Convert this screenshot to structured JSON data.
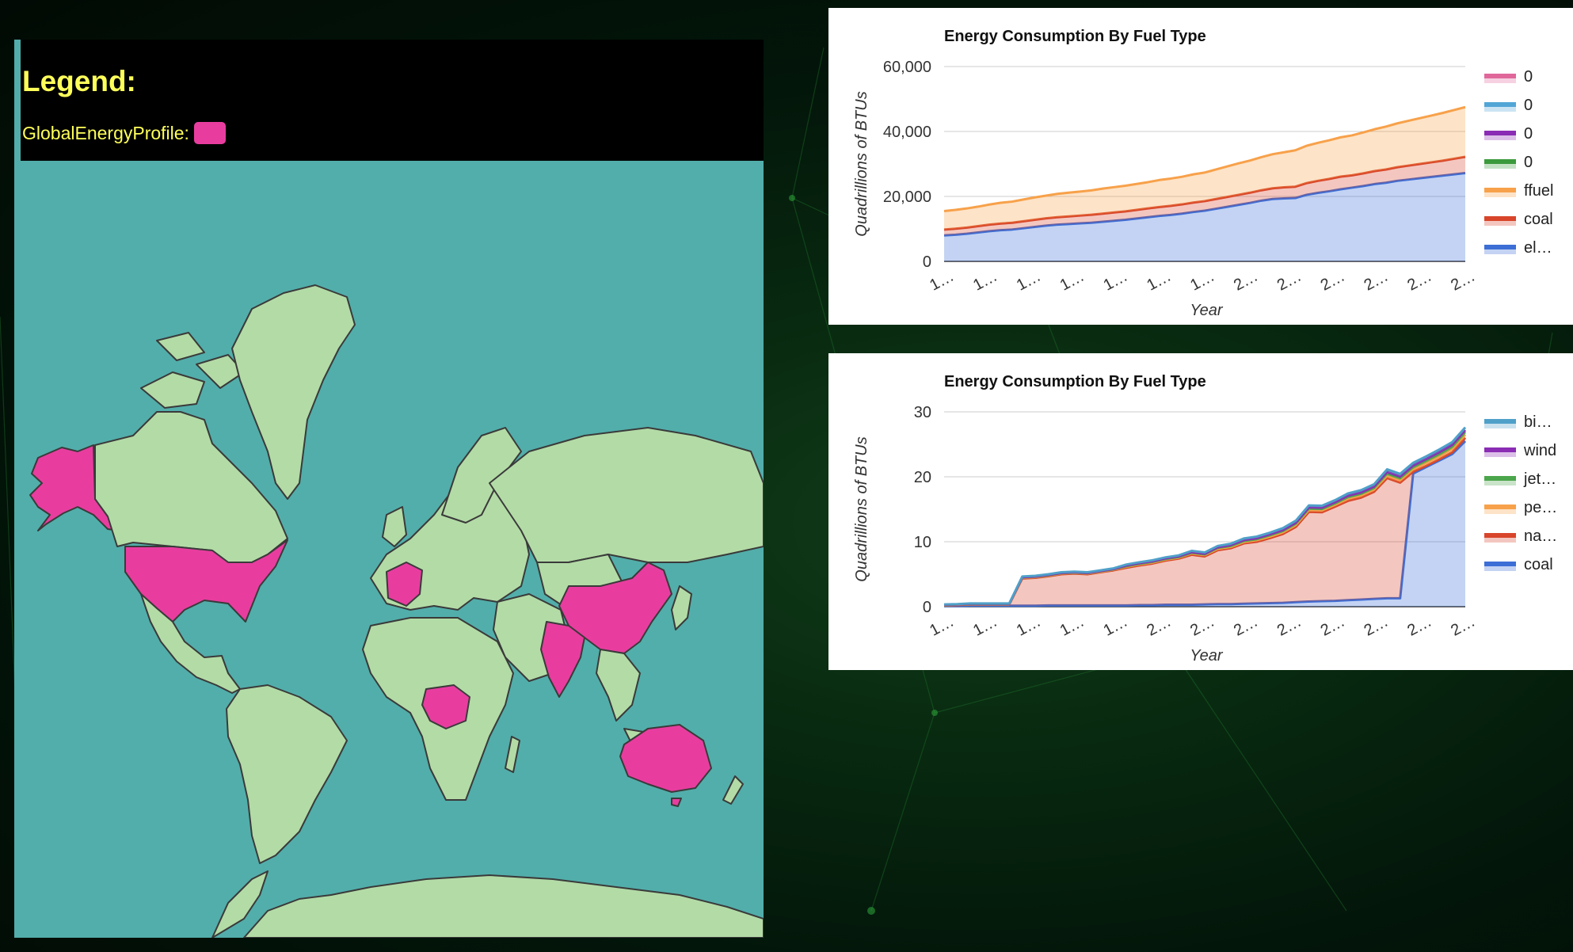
{
  "legend": {
    "title": "Legend:",
    "item_label": "GlobalEnergyProfile:",
    "item_color": "#e83d9f"
  },
  "map": {
    "ocean_color": "#52aeaa",
    "land_color": "#b3dba6",
    "highlight_color": "#e83d9f",
    "highlighted_countries": [
      "United States",
      "Alaska",
      "France",
      "China",
      "India",
      "Democratic Republic of the Congo",
      "Australia"
    ]
  },
  "chart_data": [
    {
      "type": "area",
      "title": "Energy Consumption By Fuel Type",
      "xlabel": "Year",
      "ylabel": "Quadrillions of BTUs",
      "ylim": [
        0,
        60000
      ],
      "yticks": [
        "60,000",
        "40,000",
        "20,000",
        "0"
      ],
      "xtick_labels": [
        "1…",
        "1…",
        "1…",
        "1…",
        "1…",
        "1…",
        "1…",
        "2…",
        "2…",
        "2…",
        "2…",
        "2…",
        "2…"
      ],
      "legend_position": "right",
      "grid": true,
      "stacked": true,
      "series": [
        {
          "name": "0",
          "color": "#e0679a",
          "values": []
        },
        {
          "name": "0",
          "color": "#52a6d6",
          "values": []
        },
        {
          "name": "0",
          "color": "#8a2cb4",
          "values": []
        },
        {
          "name": "0",
          "color": "#3b9a3b",
          "values": []
        },
        {
          "name": "ffuel",
          "color": "#f7a14a",
          "values": [
            5700,
            5800,
            5900,
            6000,
            6200,
            6400,
            6500,
            6700,
            6900,
            7000,
            7200,
            7300,
            7400,
            7500,
            7700,
            7800,
            7900,
            8000,
            8100,
            8300,
            8400,
            8500,
            8700,
            8800,
            9100,
            9400,
            9700,
            9900,
            10200,
            10500,
            10800,
            11200,
            11500,
            11700,
            11900,
            12100,
            12300,
            12600,
            12900,
            13200,
            13500,
            13800,
            14100,
            14400,
            14700,
            15000,
            15300
          ]
        },
        {
          "name": "coal",
          "color": "#d8452a",
          "values": [
            1800,
            1850,
            1900,
            1950,
            2000,
            2050,
            2100,
            2150,
            2200,
            2250,
            2300,
            2350,
            2400,
            2450,
            2500,
            2550,
            2600,
            2650,
            2700,
            2750,
            2800,
            2850,
            2900,
            2950,
            3000,
            3050,
            3100,
            3150,
            3200,
            3300,
            3400,
            3500,
            3600,
            3700,
            3800,
            3900,
            3800,
            3900,
            4000,
            4100,
            4200,
            4300,
            4400,
            4500,
            4600,
            4800,
            5000
          ]
        },
        {
          "name": "el…",
          "color": "#3c6ed6",
          "values": [
            8000,
            8200,
            8500,
            8900,
            9300,
            9600,
            9800,
            10200,
            10600,
            11000,
            11300,
            11500,
            11700,
            11900,
            12200,
            12500,
            12800,
            13200,
            13600,
            14000,
            14300,
            14700,
            15200,
            15600,
            16200,
            16800,
            17400,
            18000,
            18700,
            19200,
            19400,
            19500,
            20500,
            21100,
            21600,
            22200,
            22700,
            23200,
            23800,
            24200,
            24800,
            25200,
            25600,
            26000,
            26400,
            26800,
            27200
          ]
        }
      ]
    },
    {
      "type": "area",
      "title": "Energy Consumption By Fuel Type",
      "xlabel": "Year",
      "ylabel": "Quadrillions of BTUs",
      "ylim": [
        0,
        30
      ],
      "yticks": [
        "30",
        "20",
        "10",
        "0"
      ],
      "xtick_labels": [
        "1…",
        "1…",
        "1…",
        "1…",
        "1…",
        "2…",
        "2…",
        "2…",
        "2…",
        "2…",
        "2…",
        "2…",
        "2…"
      ],
      "legend_position": "right",
      "grid": true,
      "stacked": true,
      "series": [
        {
          "name": "bi…",
          "color": "#4fa0c8",
          "values": [
            0.05,
            0.05,
            0.05,
            0.05,
            0.05,
            0.05,
            0.1,
            0.1,
            0.1,
            0.1,
            0.1,
            0.1,
            0.1,
            0.1,
            0.15,
            0.15,
            0.15,
            0.15,
            0.15,
            0.2,
            0.2,
            0.2,
            0.2,
            0.25,
            0.25,
            0.25,
            0.3,
            0.3,
            0.3,
            0.3,
            0.3,
            0.35,
            0.35,
            0.35,
            0.4,
            0.4,
            0.4,
            0.4,
            0.4,
            0.4,
            0.4
          ]
        },
        {
          "name": "wind",
          "color": "#8a2cb4",
          "values": [
            0.02,
            0.02,
            0.02,
            0.02,
            0.02,
            0.02,
            0.05,
            0.05,
            0.05,
            0.05,
            0.05,
            0.05,
            0.05,
            0.05,
            0.1,
            0.1,
            0.1,
            0.1,
            0.1,
            0.1,
            0.1,
            0.1,
            0.15,
            0.15,
            0.15,
            0.15,
            0.15,
            0.15,
            0.2,
            0.2,
            0.2,
            0.2,
            0.2,
            0.2,
            0.25,
            0.25,
            0.25,
            0.25,
            0.3,
            0.3,
            0.3
          ]
        },
        {
          "name": "jet…",
          "color": "#4ca64c",
          "values": [
            0.03,
            0.03,
            0.03,
            0.03,
            0.03,
            0.03,
            0.05,
            0.05,
            0.05,
            0.05,
            0.05,
            0.05,
            0.05,
            0.05,
            0.1,
            0.1,
            0.1,
            0.1,
            0.1,
            0.1,
            0.1,
            0.15,
            0.15,
            0.15,
            0.15,
            0.2,
            0.2,
            0.2,
            0.2,
            0.2,
            0.2,
            0.25,
            0.25,
            0.25,
            0.3,
            0.3,
            0.3,
            0.35,
            0.35,
            0.35,
            0.4
          ]
        },
        {
          "name": "pe…",
          "color": "#f7a14a",
          "values": [
            0.05,
            0.05,
            0.05,
            0.05,
            0.05,
            0.05,
            0.1,
            0.1,
            0.1,
            0.1,
            0.1,
            0.1,
            0.1,
            0.1,
            0.15,
            0.15,
            0.15,
            0.15,
            0.15,
            0.2,
            0.2,
            0.2,
            0.2,
            0.2,
            0.25,
            0.25,
            0.25,
            0.3,
            0.3,
            0.3,
            0.3,
            0.35,
            0.35,
            0.35,
            0.4,
            0.4,
            0.4,
            0.45,
            0.45,
            0.5,
            0.5
          ]
        },
        {
          "name": "na…",
          "color": "#d8452a",
          "values": [
            0.1,
            0.15,
            0.2,
            0.2,
            0.2,
            0.2,
            4.2,
            4.3,
            4.5,
            4.8,
            4.9,
            4.8,
            5.1,
            5.4,
            5.8,
            6.1,
            6.4,
            6.8,
            7.1,
            7.7,
            7.4,
            8.3,
            8.6,
            9.3,
            9.5,
            10.0,
            10.6,
            11.6,
            13.8,
            13.7,
            14.5,
            15.3,
            15.7,
            16.5,
            18.5,
            17.8,
            0.3,
            0.2,
            0.2,
            0.3,
            0.5
          ]
        },
        {
          "name": "coal",
          "color": "#3c6ed6",
          "values": [
            0.1,
            0.1,
            0.15,
            0.15,
            0.15,
            0.15,
            0.15,
            0.15,
            0.2,
            0.2,
            0.2,
            0.2,
            0.2,
            0.2,
            0.2,
            0.25,
            0.25,
            0.3,
            0.3,
            0.3,
            0.35,
            0.4,
            0.4,
            0.45,
            0.5,
            0.55,
            0.6,
            0.7,
            0.8,
            0.85,
            0.9,
            1.0,
            1.1,
            1.2,
            1.3,
            1.3,
            20.5,
            21.5,
            22.5,
            23.5,
            25.5
          ]
        }
      ]
    }
  ]
}
